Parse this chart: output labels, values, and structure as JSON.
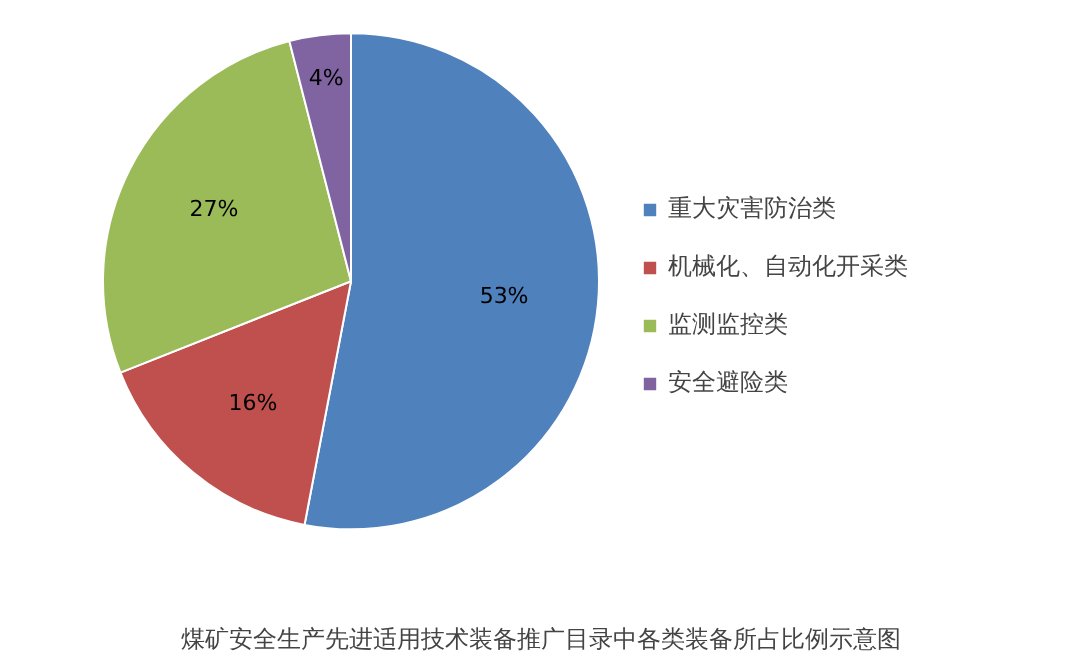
{
  "chart_data": {
    "type": "pie",
    "title": "煤矿安全生产先进适用技术装备推广目录中各类装备所占比例示意图",
    "categories": [
      "重大灾害防治类",
      "机械化、自动化开采类",
      "监测监控类",
      "安全避险类"
    ],
    "values": [
      53,
      16,
      27,
      4
    ],
    "colors": [
      "#4f81bd",
      "#c0504d",
      "#9bbb59",
      "#8064a2"
    ],
    "value_labels": [
      "53%",
      "16%",
      "27%",
      "4%"
    ],
    "legend": "right"
  }
}
